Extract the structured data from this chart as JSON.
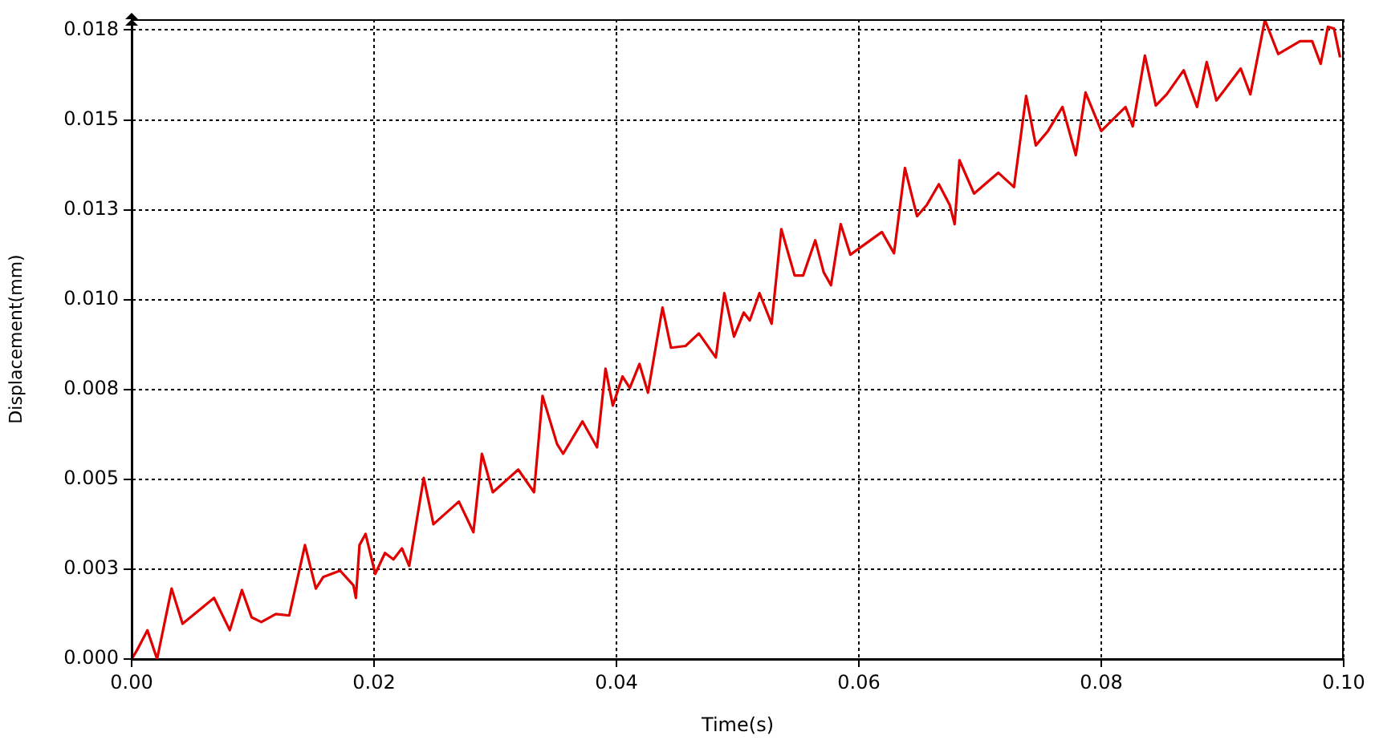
{
  "chart_data": {
    "type": "line",
    "xlabel": "Time(s)",
    "ylabel": "Displacement(mm)",
    "xlim": [
      0,
      0.1
    ],
    "ylim": [
      0,
      0.0178
    ],
    "xticks": [
      {
        "value": 0,
        "label": "0.00"
      },
      {
        "value": 0.02,
        "label": "0.02"
      },
      {
        "value": 0.04,
        "label": "0.04"
      },
      {
        "value": 0.06,
        "label": "0.06"
      },
      {
        "value": 0.08,
        "label": "0.08"
      },
      {
        "value": 0.1,
        "label": "0.10"
      }
    ],
    "yticks": [
      {
        "value": 0,
        "label": "0.000"
      },
      {
        "value": 0.0025,
        "label": "0.003"
      },
      {
        "value": 0.005,
        "label": "0.005"
      },
      {
        "value": 0.0075,
        "label": "0.008"
      },
      {
        "value": 0.01,
        "label": "0.010"
      },
      {
        "value": 0.0125,
        "label": "0.013"
      },
      {
        "value": 0.015,
        "label": "0.015"
      },
      {
        "value": 0.0175,
        "label": "0.018"
      }
    ],
    "grid": true,
    "legend": false,
    "marker": "none",
    "line_style": "solid",
    "series": [
      {
        "color": "#e00000",
        "x": [
          0,
          0.0004,
          0.0013,
          0.0021,
          0.0033,
          0.0042,
          0.0068,
          0.0081,
          0.0091,
          0.0099,
          0.0107,
          0.0119,
          0.013,
          0.0143,
          0.0152,
          0.0158,
          0.0172,
          0.0183,
          0.0185,
          0.0188,
          0.0193,
          0.0201,
          0.0209,
          0.0216,
          0.0223,
          0.0229,
          0.0241,
          0.0249,
          0.027,
          0.0282,
          0.0289,
          0.0298,
          0.0319,
          0.0332,
          0.0339,
          0.0351,
          0.0356,
          0.0372,
          0.0384,
          0.0391,
          0.0397,
          0.0405,
          0.0411,
          0.0419,
          0.0426,
          0.0438,
          0.0445,
          0.0457,
          0.0468,
          0.0482,
          0.0489,
          0.0497,
          0.0505,
          0.051,
          0.0518,
          0.0528,
          0.0536,
          0.0547,
          0.0554,
          0.0564,
          0.0571,
          0.0577,
          0.0585,
          0.0593,
          0.0619,
          0.0629,
          0.0638,
          0.0648,
          0.0656,
          0.0666,
          0.0675,
          0.0679,
          0.0683,
          0.0695,
          0.0715,
          0.0728,
          0.0738,
          0.0746,
          0.0756,
          0.0768,
          0.0779,
          0.0787,
          0.08,
          0.082,
          0.0826,
          0.0836,
          0.0845,
          0.0854,
          0.0868,
          0.0879,
          0.0887,
          0.0895,
          0.0905,
          0.0915,
          0.0923,
          0.0935,
          0.0946,
          0.0964,
          0.0974,
          0.0981,
          0.0987,
          0.0992,
          0.0997
        ],
        "values": [
          0,
          0.00022,
          0.0008,
          0,
          0.00196,
          0.00098,
          0.0017,
          0.0008,
          0.00192,
          0.00116,
          0.00103,
          0.00125,
          0.00121,
          0.00317,
          0.00196,
          0.00228,
          0.00246,
          0.00205,
          0.0017,
          0.00317,
          0.00348,
          0.00237,
          0.00295,
          0.00277,
          0.00308,
          0.00259,
          0.00504,
          0.00375,
          0.00438,
          0.00353,
          0.00571,
          0.00464,
          0.00527,
          0.00464,
          0.00732,
          0.00598,
          0.00571,
          0.00661,
          0.00589,
          0.00808,
          0.00705,
          0.00786,
          0.00754,
          0.00821,
          0.00741,
          0.00978,
          0.00866,
          0.00871,
          0.00906,
          0.00839,
          0.01018,
          0.00897,
          0.00964,
          0.00942,
          0.01018,
          0.00933,
          0.01196,
          0.01067,
          0.01067,
          0.01165,
          0.01076,
          0.0104,
          0.0121,
          0.01125,
          0.01188,
          0.01129,
          0.01366,
          0.01232,
          0.01263,
          0.01321,
          0.01263,
          0.0121,
          0.01388,
          0.01295,
          0.01353,
          0.01313,
          0.01567,
          0.01429,
          0.01469,
          0.01536,
          0.01402,
          0.01576,
          0.01469,
          0.01536,
          0.01482,
          0.01679,
          0.0154,
          0.01571,
          0.01638,
          0.01536,
          0.01661,
          0.01554,
          0.01598,
          0.01643,
          0.01571,
          0.01778,
          0.01683,
          0.01719,
          0.01719,
          0.01656,
          0.01759,
          0.01754,
          0.01674
        ]
      }
    ]
  }
}
